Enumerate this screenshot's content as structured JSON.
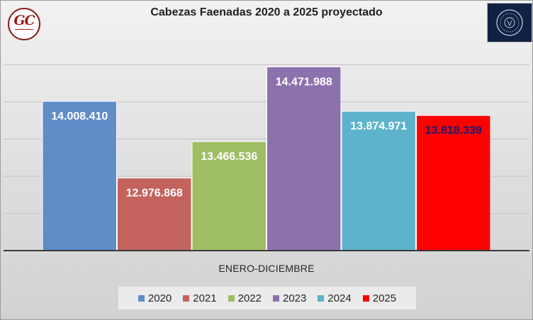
{
  "chart_data": {
    "type": "bar",
    "title": "Cabezas Faenadas 2020 a 2025 proyectado",
    "categories": [
      "ENERO-DICIEMBRE"
    ],
    "series": [
      {
        "name": "2020",
        "values": [
          14008410
        ],
        "label": "14.008.410",
        "color": "#5f8dc8",
        "label_color": "#ffffff"
      },
      {
        "name": "2021",
        "values": [
          12976868
        ],
        "label": "12.976.868",
        "color": "#c4625e",
        "label_color": "#ffffff"
      },
      {
        "name": "2022",
        "values": [
          13466536
        ],
        "label": "13.466.536",
        "color": "#9fbd62",
        "label_color": "#ffffff"
      },
      {
        "name": "2023",
        "values": [
          14471988
        ],
        "label": "14.471.988",
        "color": "#8c72ad",
        "label_color": "#ffffff"
      },
      {
        "name": "2024",
        "values": [
          13874971
        ],
        "label": "13.874.971",
        "color": "#5db3cb",
        "label_color": "#ffffff"
      },
      {
        "name": "2025",
        "values": [
          13818339
        ],
        "label": "13.818.339",
        "color": "#ff0000",
        "label_color": "#1a1a6e"
      }
    ],
    "ylim": [
      12000000,
      15000000
    ],
    "grid": true,
    "legend": "bottom"
  },
  "logos": {
    "left": "GC",
    "right": "seal-icon"
  }
}
